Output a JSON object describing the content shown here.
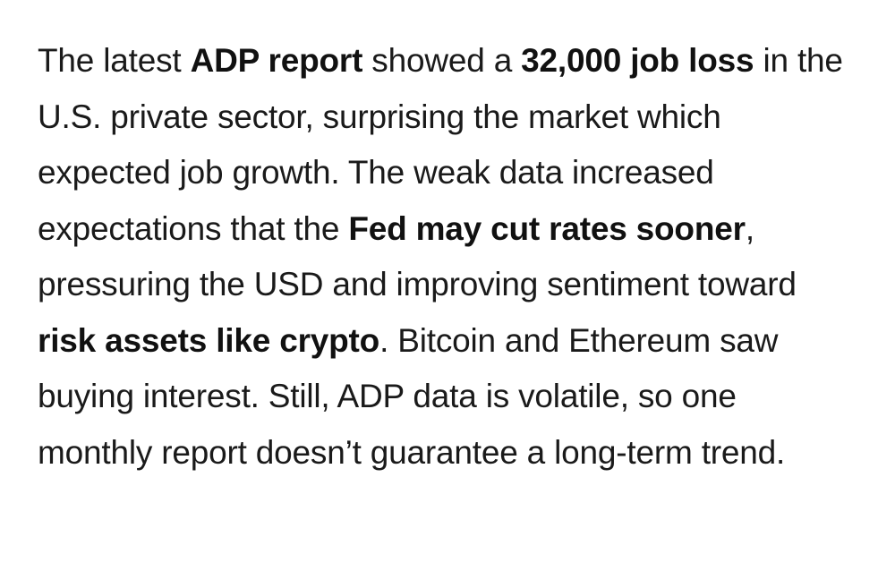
{
  "paragraph": {
    "segments": [
      {
        "text": "The latest ",
        "bold": false
      },
      {
        "text": "ADP report",
        "bold": true
      },
      {
        "text": " showed a ",
        "bold": false
      },
      {
        "text": "32,000 job loss",
        "bold": true
      },
      {
        "text": " in the U.S. private sector, surprising the market which expected job growth. The weak data increased expectations that the ",
        "bold": false
      },
      {
        "text": "Fed may cut rates sooner",
        "bold": true
      },
      {
        "text": ", pressuring the USD and improving sentiment toward ",
        "bold": false
      },
      {
        "text": "risk assets like crypto",
        "bold": true
      },
      {
        "text": ". Bitcoin and Ethereum saw buying interest. Still, ADP data is volatile, so one monthly report doesn’t guarantee a long-term trend.",
        "bold": false
      }
    ]
  }
}
